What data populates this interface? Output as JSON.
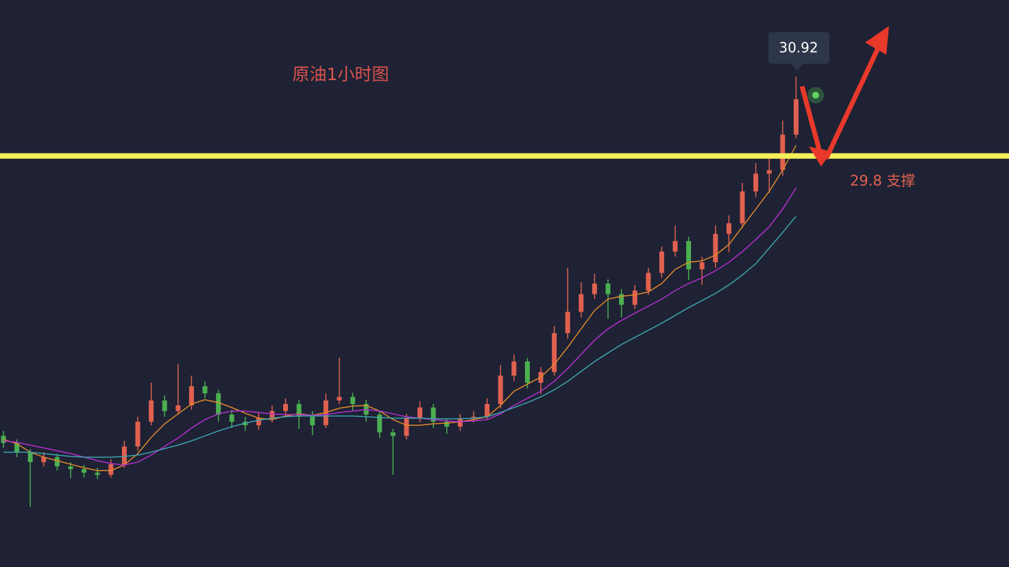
{
  "chart_data": {
    "type": "candlestick",
    "title": "原油1小时图",
    "ylim": [
      24,
      32
    ],
    "up_color": "#e0614f",
    "down_color": "#4caf50",
    "open": [
      25.85,
      25.75,
      25.62,
      25.48,
      25.55,
      25.42,
      25.38,
      25.33,
      25.3,
      25.45,
      25.7,
      26.05,
      26.35,
      26.2,
      26.28,
      26.55,
      26.45,
      26.15,
      26.05,
      26.0,
      26.1,
      26.2,
      26.3,
      26.12,
      26.0,
      26.35,
      26.4,
      26.3,
      26.15,
      25.9,
      25.85,
      26.1,
      26.25,
      26.05,
      25.98,
      26.1,
      26.12,
      26.3,
      26.7,
      26.9,
      26.6,
      26.75,
      27.3,
      27.6,
      27.85,
      28.0,
      27.85,
      27.7,
      27.9,
      28.15,
      28.45,
      28.6,
      28.2,
      28.3,
      28.7,
      28.85,
      29.3,
      29.55,
      29.6,
      30.1
    ],
    "high": [
      25.92,
      25.8,
      25.66,
      25.62,
      25.6,
      25.48,
      25.44,
      25.4,
      25.52,
      25.78,
      26.12,
      26.6,
      26.42,
      26.86,
      26.7,
      26.62,
      26.5,
      26.22,
      26.12,
      26.18,
      26.28,
      26.38,
      26.36,
      26.2,
      26.45,
      26.95,
      26.46,
      26.36,
      26.2,
      25.95,
      26.16,
      26.34,
      26.3,
      26.1,
      26.16,
      26.2,
      26.38,
      26.85,
      27.0,
      26.95,
      26.82,
      27.4,
      28.22,
      28.02,
      28.14,
      28.06,
      27.92,
      27.98,
      28.22,
      28.52,
      28.82,
      28.66,
      28.38,
      28.82,
      28.96,
      29.42,
      29.7,
      29.82,
      30.3,
      30.92
    ],
    "low": [
      25.68,
      25.55,
      24.85,
      25.42,
      25.36,
      25.25,
      25.26,
      25.24,
      25.26,
      25.4,
      25.64,
      26.0,
      26.12,
      26.15,
      26.22,
      26.38,
      26.05,
      25.96,
      25.92,
      25.94,
      26.04,
      26.14,
      25.95,
      25.86,
      25.96,
      26.3,
      26.2,
      26.05,
      25.82,
      25.3,
      25.8,
      26.04,
      25.96,
      25.88,
      25.92,
      26.04,
      26.08,
      26.24,
      26.62,
      26.52,
      26.44,
      26.7,
      27.22,
      27.52,
      27.78,
      27.5,
      27.52,
      27.64,
      27.84,
      28.08,
      28.38,
      28.05,
      27.98,
      28.22,
      28.44,
      28.78,
      29.22,
      29.28,
      29.52,
      30.05
    ],
    "close": [
      25.75,
      25.62,
      25.48,
      25.55,
      25.42,
      25.38,
      25.33,
      25.3,
      25.45,
      25.7,
      26.05,
      26.35,
      26.2,
      26.28,
      26.55,
      26.45,
      26.15,
      26.05,
      26.0,
      26.1,
      26.2,
      26.3,
      26.12,
      26.0,
      26.35,
      26.4,
      26.3,
      26.15,
      25.9,
      25.85,
      26.1,
      26.25,
      26.05,
      25.98,
      26.1,
      26.12,
      26.3,
      26.7,
      26.9,
      26.6,
      26.75,
      27.3,
      27.6,
      27.85,
      28.0,
      27.85,
      27.7,
      27.9,
      28.15,
      28.45,
      28.6,
      28.2,
      28.3,
      28.7,
      28.85,
      29.3,
      29.55,
      29.6,
      30.1,
      30.6
    ],
    "series": [
      {
        "color": "#e08a2c",
        "values": [
          25.8,
          25.74,
          25.62,
          25.55,
          25.5,
          25.45,
          25.4,
          25.36,
          25.36,
          25.44,
          25.6,
          25.83,
          26.02,
          26.16,
          26.3,
          26.36,
          26.32,
          26.25,
          26.17,
          26.1,
          26.08,
          26.13,
          26.16,
          26.14,
          26.18,
          26.24,
          26.27,
          26.28,
          26.2,
          26.08,
          26.0,
          26.0,
          26.02,
          26.03,
          26.05,
          26.08,
          26.12,
          26.28,
          26.48,
          26.58,
          26.68,
          26.86,
          27.1,
          27.36,
          27.62,
          27.78,
          27.82,
          27.84,
          27.88,
          28.0,
          28.2,
          28.3,
          28.32,
          28.4,
          28.55,
          28.8,
          29.05,
          29.3,
          29.6,
          29.95
        ]
      },
      {
        "color": "#b52fd0",
        "values": [
          25.78,
          25.76,
          25.72,
          25.68,
          25.64,
          25.6,
          25.55,
          25.5,
          25.46,
          25.44,
          25.48,
          25.58,
          25.7,
          25.82,
          25.96,
          26.08,
          26.16,
          26.2,
          26.2,
          26.18,
          26.16,
          26.15,
          26.15,
          26.14,
          26.15,
          26.18,
          26.2,
          26.22,
          26.2,
          26.16,
          26.12,
          26.1,
          26.08,
          26.06,
          26.05,
          26.06,
          26.08,
          26.16,
          26.28,
          26.38,
          26.48,
          26.62,
          26.8,
          27.0,
          27.2,
          27.36,
          27.48,
          27.58,
          27.68,
          27.78,
          27.9,
          28.0,
          28.08,
          28.18,
          28.3,
          28.45,
          28.62,
          28.8,
          29.05,
          29.35
        ]
      },
      {
        "color": "#3fa3b0",
        "values": [
          25.62,
          25.62,
          25.62,
          25.6,
          25.58,
          25.56,
          25.55,
          25.55,
          25.55,
          25.56,
          25.58,
          25.62,
          25.67,
          25.72,
          25.78,
          25.85,
          25.92,
          25.98,
          26.03,
          26.07,
          26.1,
          26.12,
          26.13,
          26.13,
          26.13,
          26.13,
          26.13,
          26.12,
          26.11,
          26.1,
          26.1,
          26.1,
          26.09,
          26.09,
          26.09,
          26.1,
          26.12,
          26.18,
          26.25,
          26.32,
          26.4,
          26.5,
          26.62,
          26.76,
          26.9,
          27.02,
          27.14,
          27.24,
          27.34,
          27.44,
          27.55,
          27.66,
          27.76,
          27.86,
          27.98,
          28.12,
          28.28,
          28.5,
          28.72,
          28.95
        ]
      }
    ],
    "highlight": {
      "value": 30.92
    },
    "support": {
      "value": 29.8,
      "label": "29.8 支撑",
      "color": "#f5ef5a"
    }
  }
}
